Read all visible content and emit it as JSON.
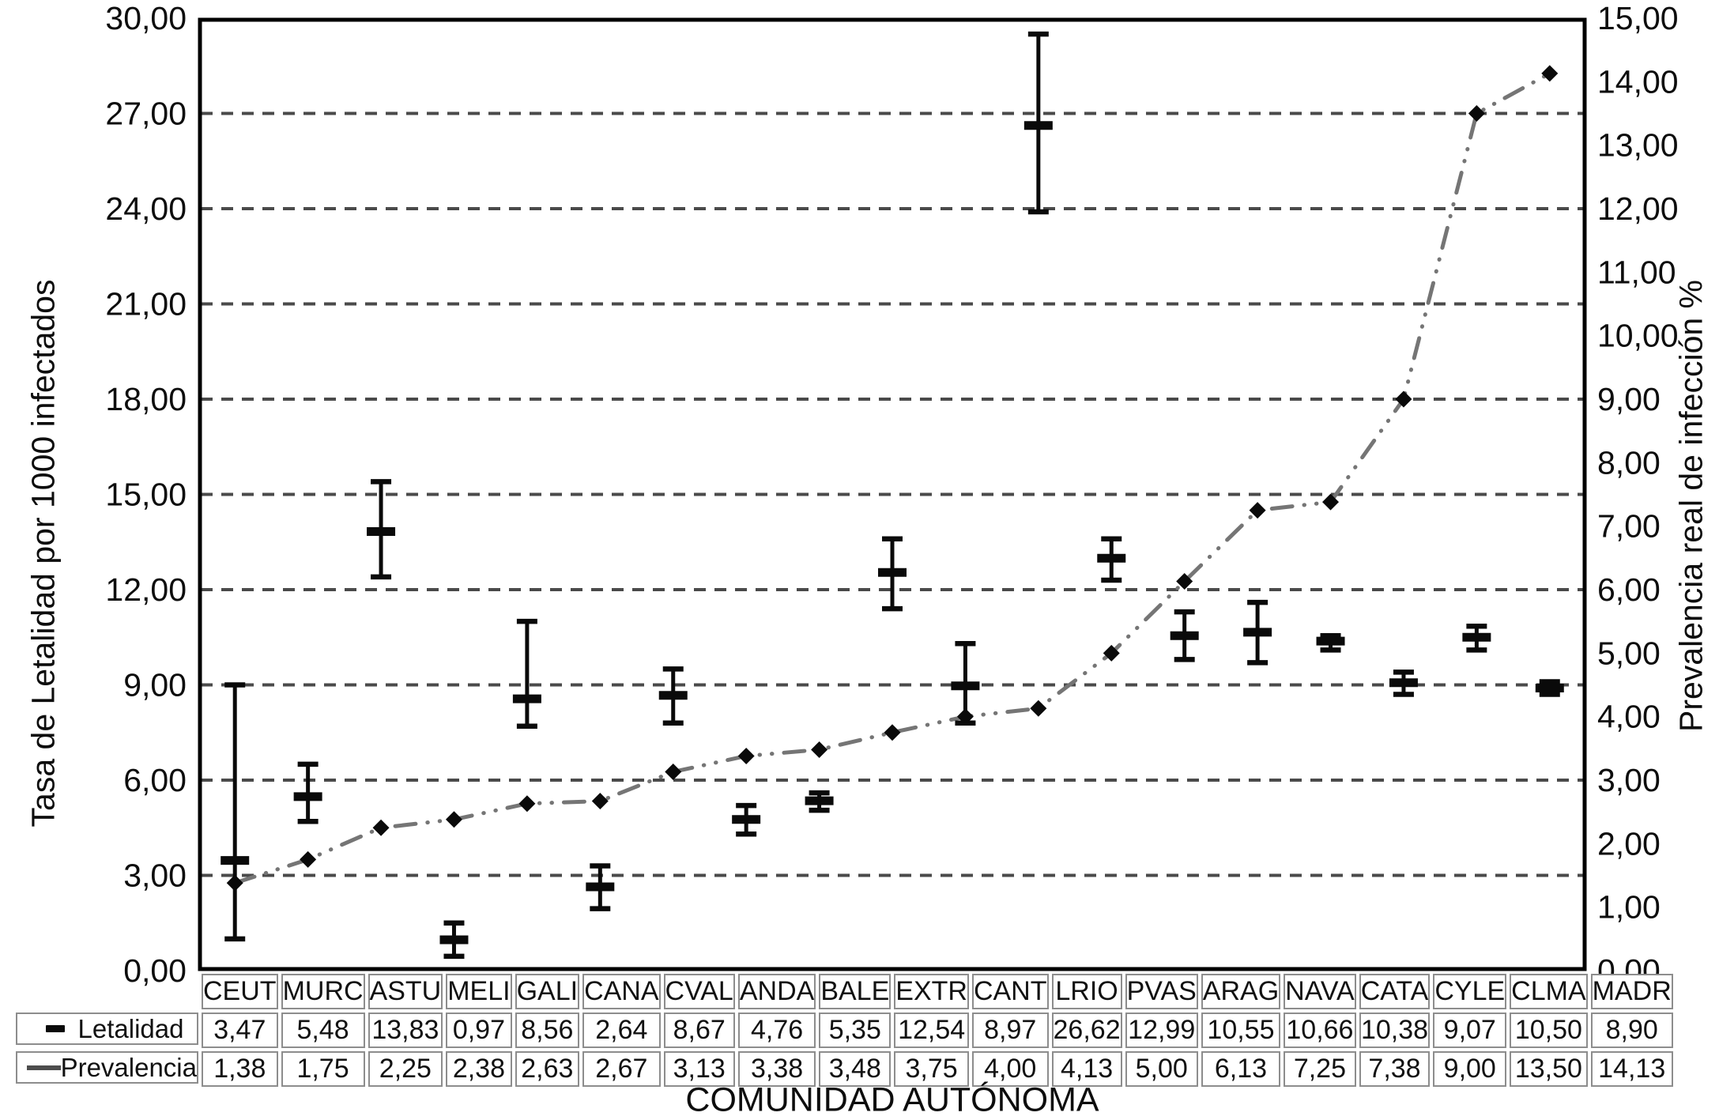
{
  "figure": {
    "x_axis_title": "COMUNIDAD AUTÓNOMA",
    "y_left_title": "Tasa de Letalidad por 1000 infectados",
    "y_right_title": "Prevalencia real de infección %"
  },
  "chart_data": {
    "type": "line",
    "subtype": "combo: error-bar points (left axis) + dash-dot line with diamond markers (right axis)",
    "categories": [
      "CEUT",
      "MURC",
      "ASTU",
      "MELI",
      "GALI",
      "CANA",
      "CVAL",
      "ANDA",
      "BALE",
      "EXTR",
      "CANT",
      "LRIO",
      "PVAS",
      "ARAG",
      "NAVA",
      "CATA",
      "CYLE",
      "CLMA",
      "MADR"
    ],
    "series": [
      {
        "name": "Letalidad",
        "axis": "left",
        "marker": "thick-dash",
        "values": [
          3.47,
          5.48,
          13.83,
          0.97,
          8.56,
          2.64,
          8.67,
          4.76,
          5.35,
          12.54,
          8.97,
          26.62,
          12.99,
          10.55,
          10.66,
          10.38,
          9.07,
          10.5,
          8.9
        ],
        "error_low": [
          1.0,
          4.7,
          12.4,
          0.45,
          7.7,
          1.95,
          7.8,
          4.3,
          5.05,
          11.4,
          7.8,
          23.9,
          12.3,
          9.8,
          9.7,
          10.1,
          8.7,
          10.1,
          8.7
        ],
        "error_high": [
          9.0,
          6.5,
          15.4,
          1.5,
          11.0,
          3.3,
          9.5,
          5.2,
          5.6,
          13.6,
          10.3,
          29.5,
          13.6,
          11.3,
          11.6,
          10.55,
          9.4,
          10.85,
          9.1
        ]
      },
      {
        "name": "Prevalencia",
        "axis": "right",
        "marker": "diamond",
        "line_style": "dash-dot-dot",
        "values": [
          1.38,
          1.75,
          2.25,
          2.38,
          2.63,
          2.67,
          3.13,
          3.38,
          3.48,
          3.75,
          4.0,
          4.13,
          5.0,
          6.13,
          7.25,
          7.38,
          9.0,
          13.5,
          14.13
        ]
      }
    ],
    "y_left": {
      "min": 0,
      "max": 30,
      "step": 3,
      "tick_labels": [
        "0,00",
        "3,00",
        "6,00",
        "9,00",
        "12,00",
        "15,00",
        "18,00",
        "21,00",
        "24,00",
        "27,00",
        "30,00"
      ]
    },
    "y_right": {
      "min": 0,
      "max": 15,
      "step": 1,
      "tick_labels": [
        "0,00",
        "1,00",
        "2,00",
        "3,00",
        "4,00",
        "5,00",
        "6,00",
        "7,00",
        "8,00",
        "9,00",
        "10,00",
        "11,00",
        "12,00",
        "13,00",
        "14,00",
        "15,00"
      ]
    },
    "grid": {
      "horizontal_dashed_at_left_values": [
        3,
        6,
        9,
        12,
        15,
        18,
        21,
        24,
        27
      ]
    },
    "legend_position": "table-left",
    "colors": {
      "letalidad": "#0a0a0a",
      "prevalencia_line": "#757575",
      "diamond": "#0a0a0a",
      "grid": "#4a4a4a",
      "plot_border": "#000000",
      "table_border": "#8d8d8d",
      "background": "#ffffff"
    }
  },
  "table": {
    "rows": [
      {
        "label": "Letalidad",
        "marker_icon": "thick-dash-icon",
        "values": [
          "3,47",
          "5,48",
          "13,83",
          "0,97",
          "8,56",
          "2,64",
          "8,67",
          "4,76",
          "5,35",
          "12,54",
          "8,97",
          "26,62",
          "12,99",
          "10,55",
          "10,66",
          "10,38",
          "9,07",
          "10,50",
          "8,90"
        ]
      },
      {
        "label": "Prevalencia",
        "marker_icon": "line-diamond-dots-icon",
        "values": [
          "1,38",
          "1,75",
          "2,25",
          "2,38",
          "2,63",
          "2,67",
          "3,13",
          "3,38",
          "3,48",
          "3,75",
          "4,00",
          "4,13",
          "5,00",
          "6,13",
          "7,25",
          "7,38",
          "9,00",
          "13,50",
          "14,13"
        ]
      }
    ]
  }
}
